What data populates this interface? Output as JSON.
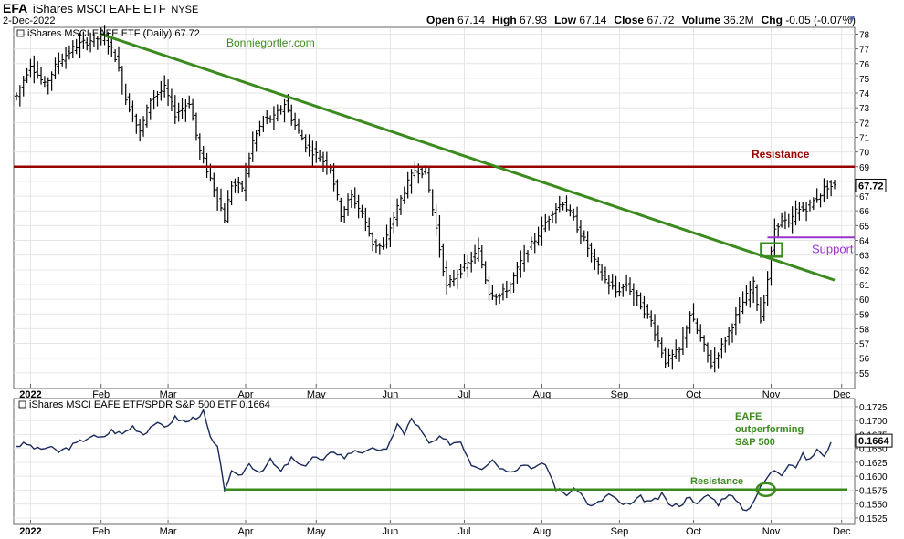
{
  "header": {
    "symbol": "EFA",
    "name": "iShares MSCI EAFE ETF",
    "exchange": "NYSE",
    "date": "2-Dec-2022",
    "ohlc": [
      {
        "label": "Open",
        "value": "67.14"
      },
      {
        "label": "High",
        "value": "67.93"
      },
      {
        "label": "Low",
        "value": "67.14"
      },
      {
        "label": "Close",
        "value": "67.72"
      },
      {
        "label": "Volume",
        "value": "36.2M"
      },
      {
        "label": "Chg",
        "value": "-0.05 (-0.07%)"
      }
    ],
    "dropdown_icon": "caret-down-icon"
  },
  "chart_data": [
    {
      "type": "ohlc",
      "legend": "iShares MSCI EAFE ETF (Daily) 67.72",
      "watermark": "Bonniegortler.com",
      "months": [
        "2022",
        "Feb",
        "Mar",
        "Apr",
        "May",
        "Jun",
        "Jul",
        "Aug",
        "Sep",
        "Oct",
        "Nov",
        "Dec"
      ],
      "x_range": [
        0,
        232
      ],
      "month_ticks": [
        4,
        24,
        43,
        65,
        85,
        106,
        127,
        149,
        171,
        192,
        214,
        234
      ],
      "ylim": [
        54,
        78.4
      ],
      "y_ticks": [
        55,
        56,
        57,
        58,
        59,
        60,
        61,
        62,
        63,
        64,
        65,
        66,
        67,
        68,
        69,
        70,
        71,
        72,
        73,
        74,
        75,
        76,
        77,
        78
      ],
      "last_value_label": "67.72",
      "bars_close_anchors": [
        [
          0,
          73.8
        ],
        [
          4,
          76.0
        ],
        [
          8,
          74.5
        ],
        [
          12,
          76.2
        ],
        [
          17,
          77.2
        ],
        [
          21,
          77.6
        ],
        [
          25,
          77.8
        ],
        [
          28,
          76.5
        ],
        [
          31,
          73.6
        ],
        [
          35,
          71.3
        ],
        [
          38,
          73.6
        ],
        [
          42,
          74.3
        ],
        [
          45,
          72.6
        ],
        [
          49,
          73.4
        ],
        [
          52,
          70.0
        ],
        [
          55,
          68.2
        ],
        [
          59,
          65.5
        ],
        [
          61,
          67.8
        ],
        [
          64,
          67.6
        ],
        [
          67,
          70.7
        ],
        [
          70,
          72.2
        ],
        [
          73,
          72.3
        ],
        [
          76,
          73.3
        ],
        [
          79,
          71.8
        ],
        [
          82,
          70.5
        ],
        [
          86,
          69.6
        ],
        [
          89,
          69.0
        ],
        [
          92,
          65.8
        ],
        [
          95,
          67.0
        ],
        [
          98,
          65.8
        ],
        [
          101,
          63.8
        ],
        [
          104,
          63.5
        ],
        [
          107,
          65.6
        ],
        [
          110,
          67.4
        ],
        [
          113,
          68.8
        ],
        [
          116,
          68.7
        ],
        [
          119,
          64.8
        ],
        [
          122,
          60.8
        ],
        [
          125,
          61.8
        ],
        [
          128,
          62.4
        ],
        [
          131,
          63.3
        ],
        [
          134,
          60.5
        ],
        [
          137,
          60.2
        ],
        [
          140,
          61.0
        ],
        [
          143,
          62.5
        ],
        [
          146,
          63.7
        ],
        [
          149,
          64.8
        ],
        [
          152,
          66.0
        ],
        [
          155,
          66.6
        ],
        [
          158,
          65.4
        ],
        [
          161,
          64.0
        ],
        [
          164,
          62.5
        ],
        [
          167,
          61.3
        ],
        [
          170,
          60.5
        ],
        [
          173,
          61.0
        ],
        [
          176,
          60.0
        ],
        [
          180,
          58.5
        ],
        [
          184,
          55.8
        ],
        [
          188,
          56.5
        ],
        [
          191,
          59.0
        ],
        [
          194,
          57.3
        ],
        [
          197,
          55.6
        ],
        [
          200,
          56.8
        ],
        [
          203,
          58.3
        ],
        [
          206,
          59.8
        ],
        [
          209,
          61.0
        ],
        [
          211,
          58.6
        ],
        [
          213,
          61.4
        ],
        [
          215,
          64.8
        ],
        [
          217,
          65.5
        ],
        [
          219,
          65.0
        ],
        [
          221,
          66.0
        ],
        [
          224,
          66.2
        ],
        [
          227,
          66.9
        ],
        [
          230,
          67.7
        ]
      ],
      "annotations": [
        {
          "type": "hline",
          "y": 69.0,
          "label": "Resistance",
          "color": "#990000"
        },
        {
          "type": "trendline",
          "from": [
            24,
            78.0
          ],
          "to": [
            232,
            61.3
          ],
          "color": "#3a8a1e"
        },
        {
          "type": "hline",
          "y": 64.2,
          "from_x": 214,
          "label": "Support",
          "color": "#9933cc"
        },
        {
          "type": "box",
          "x": [
            211,
            217
          ],
          "y": [
            62.9,
            63.8
          ],
          "color": "#3a8a1e"
        }
      ],
      "colors": {
        "price": "#000000",
        "resistance": "#990000",
        "trend": "#3a8a1e",
        "support": "#9933cc"
      }
    },
    {
      "type": "line",
      "legend": "iShares MSCI EAFE ETF/SPDR S&P 500 ETF 0.1664",
      "ylim": [
        0.1515,
        0.1738
      ],
      "y_ticks": [
        0.1525,
        0.155,
        0.1575,
        0.16,
        0.1625,
        0.165,
        0.1675,
        0.17,
        0.1725
      ],
      "last_value_label": "0.1664",
      "series_anchors": [
        [
          0,
          0.1655
        ],
        [
          3,
          0.1658
        ],
        [
          6,
          0.1648
        ],
        [
          9,
          0.1652
        ],
        [
          12,
          0.1644
        ],
        [
          15,
          0.1652
        ],
        [
          18,
          0.1662
        ],
        [
          21,
          0.1672
        ],
        [
          24,
          0.1668
        ],
        [
          27,
          0.1682
        ],
        [
          30,
          0.1676
        ],
        [
          33,
          0.169
        ],
        [
          36,
          0.1676
        ],
        [
          39,
          0.1695
        ],
        [
          42,
          0.1688
        ],
        [
          45,
          0.1705
        ],
        [
          48,
          0.1697
        ],
        [
          51,
          0.1707
        ],
        [
          53,
          0.1715
        ],
        [
          55,
          0.1668
        ],
        [
          57,
          0.165
        ],
        [
          59,
          0.1578
        ],
        [
          61,
          0.1606
        ],
        [
          63,
          0.1598
        ],
        [
          66,
          0.1622
        ],
        [
          69,
          0.1608
        ],
        [
          72,
          0.1628
        ],
        [
          75,
          0.1608
        ],
        [
          78,
          0.1632
        ],
        [
          81,
          0.1616
        ],
        [
          84,
          0.1635
        ],
        [
          87,
          0.1628
        ],
        [
          90,
          0.1646
        ],
        [
          93,
          0.1634
        ],
        [
          96,
          0.1648
        ],
        [
          99,
          0.1642
        ],
        [
          102,
          0.165
        ],
        [
          105,
          0.1645
        ],
        [
          108,
          0.1696
        ],
        [
          110,
          0.1675
        ],
        [
          112,
          0.1704
        ],
        [
          114,
          0.1688
        ],
        [
          117,
          0.1658
        ],
        [
          120,
          0.1668
        ],
        [
          123,
          0.166
        ],
        [
          126,
          0.1663
        ],
        [
          129,
          0.1622
        ],
        [
          132,
          0.1616
        ],
        [
          135,
          0.163
        ],
        [
          138,
          0.1612
        ],
        [
          141,
          0.1612
        ],
        [
          144,
          0.1622
        ],
        [
          147,
          0.1616
        ],
        [
          150,
          0.1622
        ],
        [
          153,
          0.1578
        ],
        [
          156,
          0.1568
        ],
        [
          159,
          0.1578
        ],
        [
          161,
          0.156
        ],
        [
          163,
          0.1545
        ],
        [
          165,
          0.1552
        ],
        [
          168,
          0.1568
        ],
        [
          171,
          0.1552
        ],
        [
          174,
          0.1548
        ],
        [
          177,
          0.1562
        ],
        [
          180,
          0.1552
        ],
        [
          183,
          0.1566
        ],
        [
          186,
          0.1545
        ],
        [
          189,
          0.1552
        ],
        [
          191,
          0.1566
        ],
        [
          193,
          0.1548
        ],
        [
          196,
          0.1567
        ],
        [
          199,
          0.1551
        ],
        [
          202,
          0.157
        ],
        [
          205,
          0.1548
        ],
        [
          207,
          0.1538
        ],
        [
          209,
          0.1556
        ],
        [
          211,
          0.1579
        ],
        [
          213,
          0.1599
        ],
        [
          215,
          0.1612
        ],
        [
          217,
          0.1605
        ],
        [
          219,
          0.1624
        ],
        [
          221,
          0.1618
        ],
        [
          223,
          0.1638
        ],
        [
          225,
          0.1628
        ],
        [
          227,
          0.165
        ],
        [
          229,
          0.1633
        ],
        [
          231,
          0.1665
        ]
      ],
      "annotations": [
        {
          "type": "hline",
          "y": 0.1576,
          "label": "Resistance",
          "color": "#3a8a1e"
        },
        {
          "type": "circle",
          "x": 212,
          "y": 0.1576,
          "color": "#3a8a1e"
        },
        {
          "type": "text",
          "lines": [
            "EAFE",
            "outperforming",
            "S&P 500"
          ],
          "color": "#3a8a1e"
        }
      ],
      "colors": {
        "line": "#1a2a5a",
        "resistance": "#3a8a1e"
      }
    }
  ]
}
